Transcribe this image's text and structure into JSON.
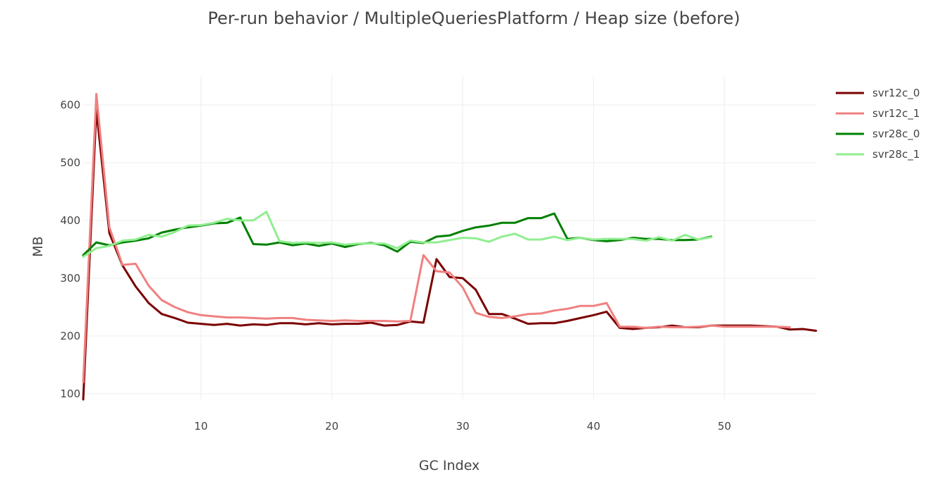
{
  "chart_data": {
    "type": "line",
    "title": "Per-run behavior / MultipleQueriesPlatform / Heap size (before)",
    "xlabel": "GC Index",
    "ylabel": "MB",
    "xlim": [
      1,
      57
    ],
    "ylim": [
      90,
      650
    ],
    "x_ticks": [
      10,
      20,
      30,
      40,
      50
    ],
    "y_ticks": [
      100,
      200,
      300,
      400,
      500,
      600
    ],
    "grid": true,
    "legend_position": "top-right",
    "series": [
      {
        "name": "svr12c_0",
        "color": "#7b0000",
        "x": [
          1,
          2,
          3,
          4,
          5,
          6,
          7,
          8,
          9,
          10,
          11,
          12,
          13,
          14,
          15,
          16,
          17,
          18,
          19,
          20,
          21,
          22,
          23,
          24,
          25,
          26,
          27,
          28,
          29,
          30,
          31,
          32,
          33,
          34,
          35,
          36,
          37,
          38,
          39,
          40,
          41,
          42,
          43,
          44,
          45,
          46,
          47,
          48,
          49,
          50,
          51,
          52,
          53,
          54,
          55,
          56,
          57
        ],
        "values": [
          90,
          592,
          378,
          322,
          286,
          257,
          238,
          231,
          223,
          221,
          219,
          221,
          218,
          220,
          219,
          222,
          222,
          220,
          222,
          220,
          221,
          221,
          223,
          218,
          219,
          225,
          223,
          333,
          302,
          300,
          280,
          238,
          238,
          230,
          221,
          222,
          222,
          226,
          231,
          236,
          242,
          214,
          212,
          214,
          215,
          218,
          215,
          215,
          218,
          218,
          218,
          218,
          217,
          216,
          211,
          212,
          209
        ]
      },
      {
        "name": "svr12c_1",
        "color": "#f08080",
        "x": [
          1,
          2,
          3,
          4,
          5,
          6,
          7,
          8,
          9,
          10,
          11,
          12,
          13,
          14,
          15,
          16,
          17,
          18,
          19,
          20,
          21,
          22,
          23,
          24,
          25,
          26,
          27,
          28,
          29,
          30,
          31,
          32,
          33,
          34,
          35,
          36,
          37,
          38,
          39,
          40,
          41,
          42,
          43,
          44,
          45,
          46,
          47,
          48,
          49,
          50,
          51,
          52,
          53,
          54,
          55
        ],
        "values": [
          120,
          619,
          388,
          323,
          325,
          287,
          262,
          250,
          241,
          236,
          234,
          232,
          232,
          231,
          230,
          231,
          231,
          228,
          227,
          226,
          227,
          226,
          226,
          226,
          225,
          226,
          340,
          312,
          310,
          284,
          240,
          233,
          231,
          234,
          238,
          239,
          244,
          247,
          252,
          252,
          257,
          216,
          216,
          214,
          216,
          215,
          215,
          216,
          218,
          216,
          216,
          216,
          216,
          216,
          215
        ]
      },
      {
        "name": "svr28c_0",
        "color": "#008000",
        "x": [
          1,
          2,
          3,
          4,
          5,
          6,
          7,
          8,
          9,
          10,
          11,
          12,
          13,
          14,
          15,
          16,
          17,
          18,
          19,
          20,
          21,
          22,
          23,
          24,
          25,
          26,
          27,
          28,
          29,
          30,
          31,
          32,
          33,
          34,
          35,
          36,
          37,
          38,
          39,
          40,
          41,
          42,
          43,
          44,
          45,
          46,
          47,
          48,
          49
        ],
        "values": [
          340,
          362,
          357,
          362,
          365,
          369,
          379,
          384,
          388,
          391,
          395,
          396,
          405,
          359,
          358,
          362,
          357,
          360,
          356,
          360,
          354,
          359,
          361,
          357,
          346,
          363,
          361,
          372,
          374,
          382,
          388,
          391,
          396,
          396,
          404,
          404,
          412,
          368,
          370,
          366,
          364,
          366,
          370,
          368,
          368,
          366,
          366,
          367,
          372
        ]
      },
      {
        "name": "svr28c_1",
        "color": "#90ee90",
        "x": [
          1,
          2,
          3,
          4,
          5,
          6,
          7,
          8,
          9,
          10,
          11,
          12,
          13,
          14,
          15,
          16,
          17,
          18,
          19,
          20,
          21,
          22,
          23,
          24,
          25,
          26,
          27,
          28,
          29,
          30,
          31,
          32,
          33,
          34,
          35,
          36,
          37,
          38,
          39,
          40,
          41,
          42,
          43,
          44,
          45,
          46,
          47,
          48,
          49
        ],
        "values": [
          337,
          352,
          356,
          365,
          367,
          375,
          372,
          380,
          391,
          392,
          396,
          403,
          400,
          400,
          415,
          364,
          361,
          362,
          361,
          362,
          358,
          360,
          360,
          360,
          352,
          365,
          362,
          362,
          366,
          370,
          369,
          363,
          372,
          377,
          367,
          367,
          372,
          366,
          370,
          367,
          368,
          368,
          368,
          365,
          371,
          365,
          375,
          367,
          371
        ]
      }
    ]
  }
}
